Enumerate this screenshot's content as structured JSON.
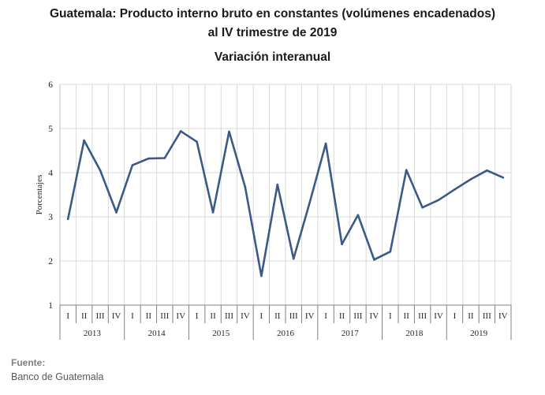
{
  "chart_data": {
    "type": "line",
    "title": "Guatemala: Producto interno bruto en constantes (volúmenes encadenados)",
    "title_line2": "al IV trimestre de 2019",
    "subtitle": "Variación interanual",
    "ylabel": "Porcentajes",
    "xlabel": "",
    "ylim": [
      1,
      6
    ],
    "yticks": [
      "1",
      "2",
      "3",
      "4",
      "5",
      "6"
    ],
    "grid": true,
    "legend": "none",
    "line_color": "#3b5a86",
    "quarters": [
      "I",
      "II",
      "III",
      "IV"
    ],
    "years": [
      "2013",
      "2014",
      "2015",
      "2016",
      "2017",
      "2018",
      "2019"
    ],
    "series": [
      {
        "values": [
          2.95,
          4.73,
          4.05,
          3.1,
          4.17,
          4.32,
          4.33,
          4.94,
          4.7,
          3.1,
          4.93,
          3.67,
          1.66,
          3.73,
          2.05,
          3.32,
          4.66,
          2.38,
          3.04,
          2.03,
          2.21,
          4.06,
          3.21,
          3.38,
          3.62,
          3.85,
          4.05,
          3.89
        ]
      }
    ]
  },
  "source": {
    "label": "Fuente:",
    "text": "Banco de Guatemala"
  }
}
